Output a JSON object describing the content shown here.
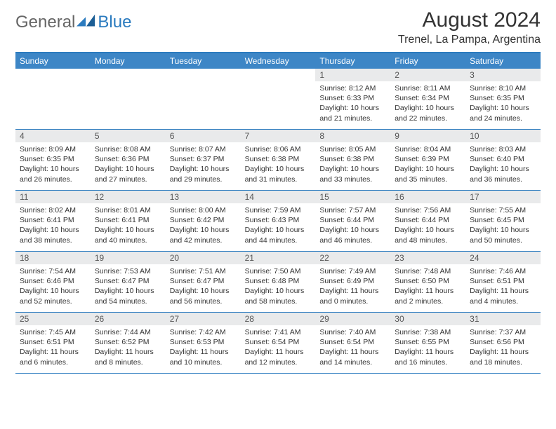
{
  "brand": {
    "name_a": "General",
    "name_b": "Blue"
  },
  "title": "August 2024",
  "location": "Trenel, La Pampa, Argentina",
  "colors": {
    "header_bg": "#3d86c6",
    "header_text": "#ffffff",
    "rule": "#2b7bbf",
    "daynum_bg": "#e9eaeb",
    "text": "#333333"
  },
  "weekdays": [
    "Sunday",
    "Monday",
    "Tuesday",
    "Wednesday",
    "Thursday",
    "Friday",
    "Saturday"
  ],
  "weeks": [
    [
      {
        "blank": true
      },
      {
        "blank": true
      },
      {
        "blank": true
      },
      {
        "blank": true
      },
      {
        "n": "1",
        "sr": "8:12 AM",
        "ss": "6:33 PM",
        "dl": "10 hours and 21 minutes."
      },
      {
        "n": "2",
        "sr": "8:11 AM",
        "ss": "6:34 PM",
        "dl": "10 hours and 22 minutes."
      },
      {
        "n": "3",
        "sr": "8:10 AM",
        "ss": "6:35 PM",
        "dl": "10 hours and 24 minutes."
      }
    ],
    [
      {
        "n": "4",
        "sr": "8:09 AM",
        "ss": "6:35 PM",
        "dl": "10 hours and 26 minutes."
      },
      {
        "n": "5",
        "sr": "8:08 AM",
        "ss": "6:36 PM",
        "dl": "10 hours and 27 minutes."
      },
      {
        "n": "6",
        "sr": "8:07 AM",
        "ss": "6:37 PM",
        "dl": "10 hours and 29 minutes."
      },
      {
        "n": "7",
        "sr": "8:06 AM",
        "ss": "6:38 PM",
        "dl": "10 hours and 31 minutes."
      },
      {
        "n": "8",
        "sr": "8:05 AM",
        "ss": "6:38 PM",
        "dl": "10 hours and 33 minutes."
      },
      {
        "n": "9",
        "sr": "8:04 AM",
        "ss": "6:39 PM",
        "dl": "10 hours and 35 minutes."
      },
      {
        "n": "10",
        "sr": "8:03 AM",
        "ss": "6:40 PM",
        "dl": "10 hours and 36 minutes."
      }
    ],
    [
      {
        "n": "11",
        "sr": "8:02 AM",
        "ss": "6:41 PM",
        "dl": "10 hours and 38 minutes."
      },
      {
        "n": "12",
        "sr": "8:01 AM",
        "ss": "6:41 PM",
        "dl": "10 hours and 40 minutes."
      },
      {
        "n": "13",
        "sr": "8:00 AM",
        "ss": "6:42 PM",
        "dl": "10 hours and 42 minutes."
      },
      {
        "n": "14",
        "sr": "7:59 AM",
        "ss": "6:43 PM",
        "dl": "10 hours and 44 minutes."
      },
      {
        "n": "15",
        "sr": "7:57 AM",
        "ss": "6:44 PM",
        "dl": "10 hours and 46 minutes."
      },
      {
        "n": "16",
        "sr": "7:56 AM",
        "ss": "6:44 PM",
        "dl": "10 hours and 48 minutes."
      },
      {
        "n": "17",
        "sr": "7:55 AM",
        "ss": "6:45 PM",
        "dl": "10 hours and 50 minutes."
      }
    ],
    [
      {
        "n": "18",
        "sr": "7:54 AM",
        "ss": "6:46 PM",
        "dl": "10 hours and 52 minutes."
      },
      {
        "n": "19",
        "sr": "7:53 AM",
        "ss": "6:47 PM",
        "dl": "10 hours and 54 minutes."
      },
      {
        "n": "20",
        "sr": "7:51 AM",
        "ss": "6:47 PM",
        "dl": "10 hours and 56 minutes."
      },
      {
        "n": "21",
        "sr": "7:50 AM",
        "ss": "6:48 PM",
        "dl": "10 hours and 58 minutes."
      },
      {
        "n": "22",
        "sr": "7:49 AM",
        "ss": "6:49 PM",
        "dl": "11 hours and 0 minutes."
      },
      {
        "n": "23",
        "sr": "7:48 AM",
        "ss": "6:50 PM",
        "dl": "11 hours and 2 minutes."
      },
      {
        "n": "24",
        "sr": "7:46 AM",
        "ss": "6:51 PM",
        "dl": "11 hours and 4 minutes."
      }
    ],
    [
      {
        "n": "25",
        "sr": "7:45 AM",
        "ss": "6:51 PM",
        "dl": "11 hours and 6 minutes."
      },
      {
        "n": "26",
        "sr": "7:44 AM",
        "ss": "6:52 PM",
        "dl": "11 hours and 8 minutes."
      },
      {
        "n": "27",
        "sr": "7:42 AM",
        "ss": "6:53 PM",
        "dl": "11 hours and 10 minutes."
      },
      {
        "n": "28",
        "sr": "7:41 AM",
        "ss": "6:54 PM",
        "dl": "11 hours and 12 minutes."
      },
      {
        "n": "29",
        "sr": "7:40 AM",
        "ss": "6:54 PM",
        "dl": "11 hours and 14 minutes."
      },
      {
        "n": "30",
        "sr": "7:38 AM",
        "ss": "6:55 PM",
        "dl": "11 hours and 16 minutes."
      },
      {
        "n": "31",
        "sr": "7:37 AM",
        "ss": "6:56 PM",
        "dl": "11 hours and 18 minutes."
      }
    ]
  ],
  "labels": {
    "sunrise": "Sunrise: ",
    "sunset": "Sunset: ",
    "daylight": "Daylight: "
  }
}
